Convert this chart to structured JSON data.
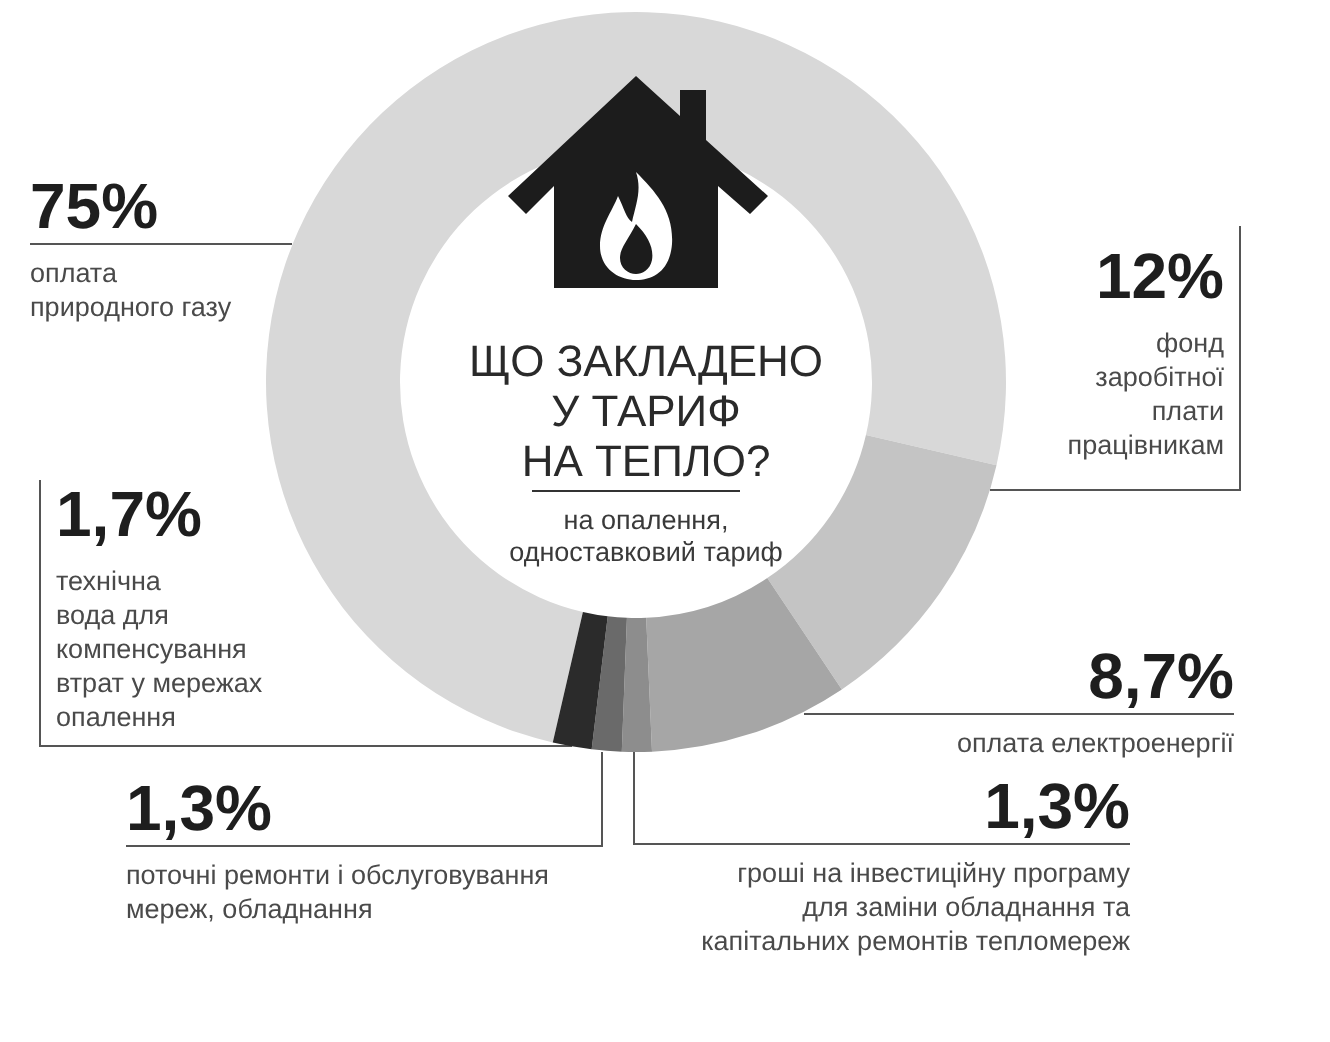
{
  "chart_data": {
    "type": "donut",
    "title": "ЩО ЗАКЛАДЕНО У ТАРИФ НА ТЕПЛО?",
    "subtitle": "на опалення, одноставковий тариф",
    "categories": [
      "оплата природного газу",
      "фонд заробітної плати працівникам",
      "оплата електроенергії",
      "гроші на інвестиційну програму для заміни обладнання та капітальних ремонтів тепломереж",
      "поточні ремонти і обслуговування мереж, обладнання",
      "технічна вода для компенсування втрат у мережах опалення"
    ],
    "values": [
      75,
      12,
      8.7,
      1.3,
      1.3,
      1.7
    ],
    "colors": [
      "#d8d8d8",
      "#c4c4c4",
      "#a6a6a6",
      "#8d8d8d",
      "#6a6a6a",
      "#2b2b2b"
    ],
    "value_labels": [
      "75%",
      "12%",
      "8,7%",
      "1,3%",
      "1,3%",
      "1,7%"
    ],
    "legend": false
  }
}
